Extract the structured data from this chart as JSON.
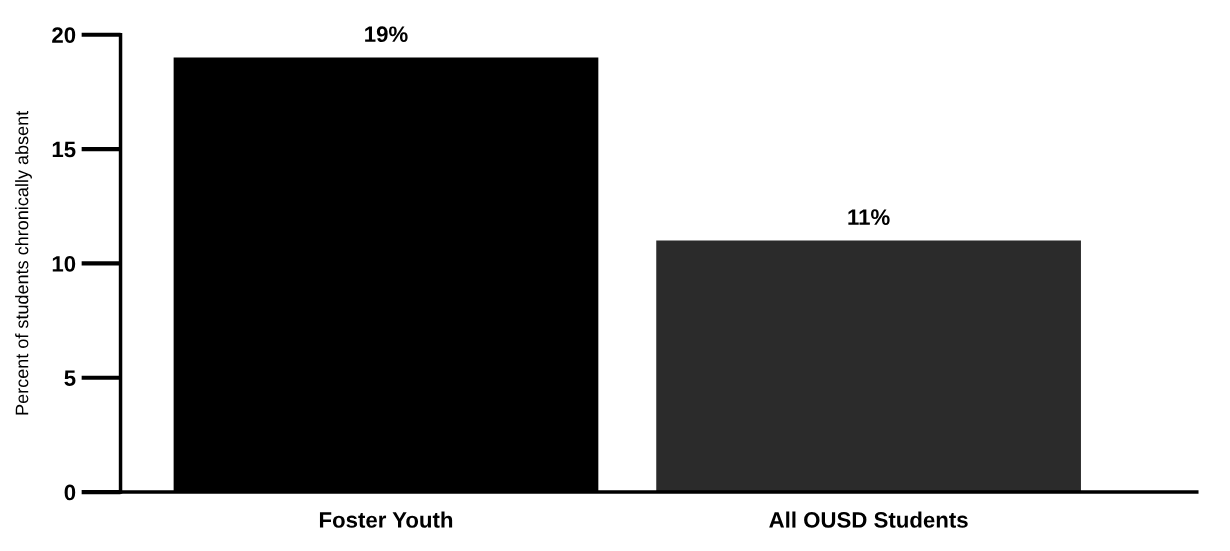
{
  "chart_data": {
    "type": "bar",
    "ylabel": "Percent of students chronically absent",
    "categories": [
      "Foster Youth",
      "All OUSD Students"
    ],
    "values": [
      19,
      11
    ],
    "colors": [
      "#000000",
      "#2b2b2b"
    ],
    "value_labels": [
      "19%",
      "11%"
    ],
    "ylim": [
      0,
      20
    ],
    "yticks": [
      0,
      5,
      10,
      15,
      20
    ],
    "grid": false
  }
}
